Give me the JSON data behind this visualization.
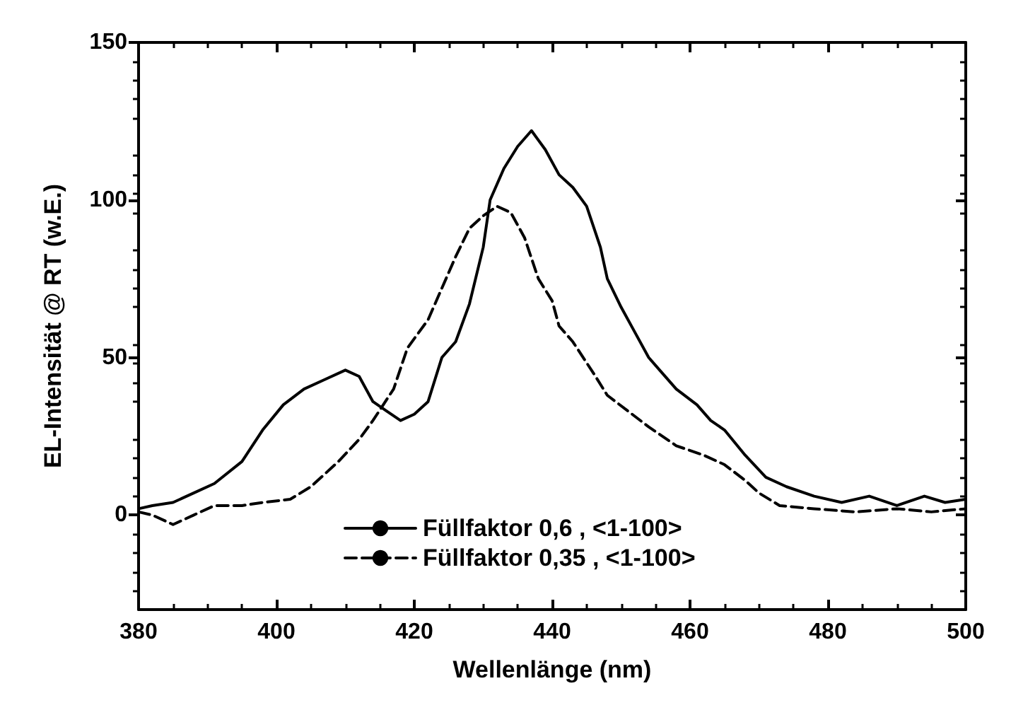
{
  "chart_data": {
    "type": "line",
    "xlabel": "Wellenlänge (nm)",
    "ylabel": "EL-Intensität @ RT (w.E.)",
    "xlim": [
      380,
      500
    ],
    "ylim": [
      -30,
      150
    ],
    "xticks": [
      380,
      400,
      420,
      440,
      460,
      480,
      500
    ],
    "yticks": [
      0,
      50,
      100,
      150
    ],
    "grid": false,
    "legend": "bottom",
    "marker": "none",
    "series": [
      {
        "name": "Füllfaktor 0,6 , <1-100>",
        "color": "#000000",
        "line_style": "solid",
        "x": [
          380,
          382,
          385,
          388,
          391,
          395,
          398,
          401,
          404,
          407,
          410,
          412,
          414,
          416,
          418,
          420,
          422,
          424,
          426,
          428,
          430,
          431,
          433,
          435,
          437,
          439,
          441,
          443,
          445,
          447,
          448,
          450,
          452,
          454,
          456,
          458,
          461,
          463,
          465,
          468,
          471,
          474,
          478,
          482,
          486,
          490,
          494,
          497,
          500
        ],
        "values": [
          2,
          3,
          4,
          7,
          10,
          17,
          27,
          35,
          40,
          43,
          46,
          44,
          36,
          33,
          30,
          32,
          36,
          50,
          55,
          67,
          85,
          100,
          110,
          117,
          122,
          116,
          108,
          104,
          98,
          85,
          75,
          66,
          58,
          50,
          45,
          40,
          35,
          30,
          27,
          19,
          12,
          9,
          6,
          4,
          6,
          3,
          6,
          4,
          5
        ]
      },
      {
        "name": "Füllfaktor 0,35 , <1-100>",
        "color": "#000000",
        "line_style": "dashed",
        "x": [
          380,
          382,
          385,
          388,
          391,
          395,
          398,
          402,
          405,
          409,
          412,
          414,
          417,
          419,
          422,
          424,
          426,
          428,
          430,
          432,
          434,
          436,
          438,
          440,
          441,
          443,
          446,
          448,
          451,
          454,
          458,
          462,
          465,
          468,
          470,
          473,
          478,
          484,
          490,
          495,
          500
        ],
        "values": [
          1,
          0,
          -3,
          0,
          3,
          3,
          4,
          5,
          9,
          17,
          24,
          30,
          40,
          53,
          62,
          72,
          82,
          91,
          95,
          98,
          96,
          88,
          75,
          68,
          60,
          55,
          45,
          38,
          33,
          28,
          22,
          19,
          16,
          11,
          7,
          3,
          2,
          1,
          2,
          1,
          2
        ]
      }
    ]
  }
}
